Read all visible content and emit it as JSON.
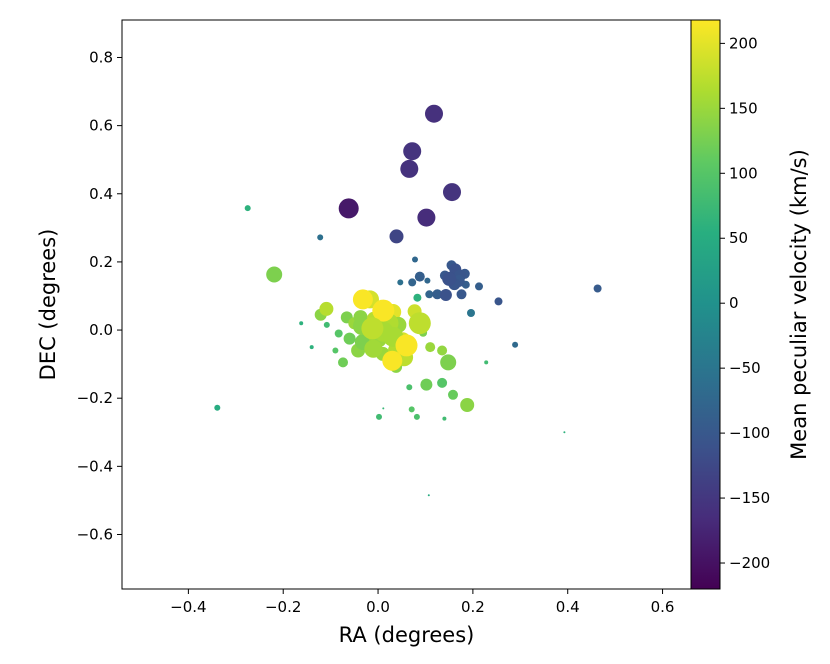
{
  "chart_data": {
    "type": "scatter",
    "title": "",
    "xlabel": "RA (degrees)",
    "ylabel": "DEC (degrees)",
    "xlim": [
      -0.54,
      0.66
    ],
    "ylim": [
      -0.76,
      0.91
    ],
    "xticks": [
      -0.4,
      -0.2,
      0.0,
      0.2,
      0.4,
      0.6
    ],
    "xtick_labels": [
      "−0.4",
      "−0.2",
      "0.0",
      "0.2",
      "0.4",
      "0.6"
    ],
    "yticks": [
      -0.6,
      -0.4,
      -0.2,
      0.0,
      0.2,
      0.4,
      0.6,
      0.8
    ],
    "ytick_labels": [
      "−0.6",
      "−0.4",
      "−0.2",
      "0.0",
      "0.2",
      "0.4",
      "0.6",
      "0.8"
    ],
    "grid": false,
    "colorbar": {
      "label": "Mean peculiar velocity (km/s)",
      "colormap": "viridis",
      "range": [
        -220,
        218
      ],
      "ticks": [
        -200,
        -150,
        -100,
        -50,
        0,
        50,
        100,
        150,
        200
      ],
      "tick_labels": [
        "−200",
        "−150",
        "−100",
        "−50",
        "0",
        "50",
        "100",
        "150",
        "200"
      ]
    },
    "point_value_keys": [
      "ra",
      "dec",
      "velocity",
      "marker_size"
    ],
    "points": [
      [
        0.118,
        0.635,
        -160,
        9
      ],
      [
        0.072,
        0.525,
        -155,
        9
      ],
      [
        0.066,
        0.473,
        -158,
        9
      ],
      [
        0.156,
        0.405,
        -155,
        9
      ],
      [
        -0.062,
        0.357,
        -190,
        10
      ],
      [
        0.102,
        0.33,
        -165,
        9
      ],
      [
        0.039,
        0.275,
        -130,
        7
      ],
      [
        -0.275,
        0.358,
        60,
        3
      ],
      [
        -0.122,
        0.272,
        -60,
        3
      ],
      [
        0.078,
        0.207,
        -75,
        3
      ],
      [
        0.155,
        0.19,
        -100,
        5
      ],
      [
        0.163,
        0.178,
        -110,
        6
      ],
      [
        0.183,
        0.165,
        -100,
        5
      ],
      [
        0.141,
        0.16,
        -100,
        5
      ],
      [
        0.173,
        0.16,
        -105,
        6
      ],
      [
        0.15,
        0.15,
        -110,
        7
      ],
      [
        0.088,
        0.157,
        -90,
        5
      ],
      [
        0.17,
        0.144,
        -100,
        6
      ],
      [
        0.161,
        0.135,
        -105,
        6
      ],
      [
        0.104,
        0.145,
        -75,
        3
      ],
      [
        0.185,
        0.133,
        -90,
        4
      ],
      [
        0.072,
        0.14,
        -80,
        4
      ],
      [
        0.047,
        0.14,
        -60,
        3
      ],
      [
        0.213,
        0.128,
        -90,
        4
      ],
      [
        0.463,
        0.122,
        -95,
        4
      ],
      [
        0.125,
        0.105,
        -90,
        5
      ],
      [
        0.143,
        0.103,
        -110,
        6
      ],
      [
        0.108,
        0.105,
        -80,
        4
      ],
      [
        0.176,
        0.105,
        -100,
        5
      ],
      [
        0.254,
        0.084,
        -105,
        4
      ],
      [
        0.083,
        0.095,
        60,
        4
      ],
      [
        0.196,
        0.05,
        -50,
        4
      ],
      [
        0.289,
        -0.043,
        -70,
        3
      ],
      [
        -0.219,
        0.163,
        130,
        8
      ],
      [
        -0.109,
        0.062,
        170,
        7
      ],
      [
        -0.032,
        0.09,
        215,
        10
      ],
      [
        -0.017,
        0.09,
        190,
        9
      ],
      [
        0.011,
        0.057,
        215,
        11
      ],
      [
        0.032,
        0.053,
        200,
        8
      ],
      [
        0.077,
        0.055,
        185,
        7
      ],
      [
        0.088,
        0.02,
        175,
        11
      ],
      [
        -0.121,
        0.045,
        140,
        6
      ],
      [
        -0.108,
        0.015,
        80,
        3
      ],
      [
        -0.066,
        0.037,
        130,
        6
      ],
      [
        -0.037,
        0.038,
        140,
        7
      ],
      [
        -0.009,
        0.033,
        170,
        7
      ],
      [
        -0.05,
        0.02,
        150,
        6
      ],
      [
        -0.034,
        0.012,
        140,
        9
      ],
      [
        0.022,
        0.02,
        165,
        10
      ],
      [
        0.043,
        0.015,
        150,
        8
      ],
      [
        -0.012,
        0.005,
        175,
        11
      ],
      [
        0.012,
        -0.005,
        160,
        10
      ],
      [
        0.095,
        -0.008,
        130,
        4
      ],
      [
        -0.083,
        -0.01,
        100,
        4
      ],
      [
        -0.06,
        -0.025,
        120,
        6
      ],
      [
        -0.032,
        -0.035,
        130,
        8
      ],
      [
        0.0,
        -0.025,
        150,
        9
      ],
      [
        0.032,
        -0.02,
        160,
        10
      ],
      [
        0.052,
        -0.03,
        190,
        8
      ],
      [
        -0.042,
        -0.06,
        140,
        7
      ],
      [
        -0.01,
        -0.055,
        155,
        9
      ],
      [
        0.01,
        -0.07,
        150,
        7
      ],
      [
        0.04,
        -0.06,
        165,
        9
      ],
      [
        0.06,
        -0.045,
        215,
        11
      ],
      [
        -0.09,
        -0.06,
        100,
        3
      ],
      [
        -0.074,
        -0.095,
        120,
        5
      ],
      [
        0.03,
        -0.09,
        215,
        10
      ],
      [
        0.055,
        -0.08,
        175,
        9
      ],
      [
        0.038,
        -0.108,
        140,
        6
      ],
      [
        0.11,
        -0.05,
        150,
        5
      ],
      [
        0.135,
        -0.06,
        145,
        5
      ],
      [
        0.148,
        -0.095,
        130,
        8
      ],
      [
        0.228,
        -0.095,
        80,
        2
      ],
      [
        -0.162,
        0.02,
        60,
        2
      ],
      [
        -0.14,
        -0.05,
        60,
        2
      ],
      [
        -0.339,
        -0.228,
        50,
        3
      ],
      [
        0.066,
        -0.168,
        90,
        3
      ],
      [
        0.102,
        -0.16,
        120,
        6
      ],
      [
        0.135,
        -0.155,
        100,
        5
      ],
      [
        0.158,
        -0.19,
        115,
        5
      ],
      [
        0.188,
        -0.22,
        140,
        7
      ],
      [
        0.071,
        -0.233,
        100,
        3
      ],
      [
        0.082,
        -0.255,
        90,
        3
      ],
      [
        0.002,
        -0.255,
        80,
        3
      ],
      [
        0.011,
        -0.23,
        70,
        1
      ],
      [
        0.393,
        -0.3,
        60,
        1
      ],
      [
        0.107,
        -0.485,
        50,
        1
      ],
      [
        0.14,
        -0.26,
        80,
        2
      ]
    ]
  }
}
